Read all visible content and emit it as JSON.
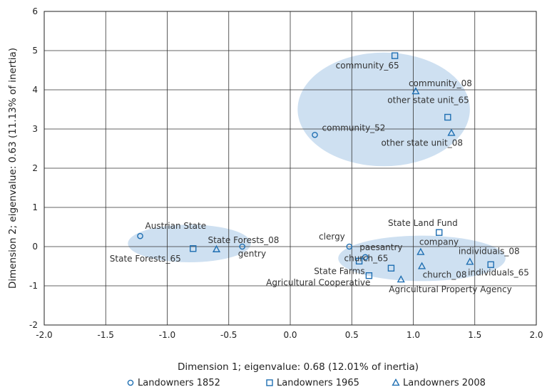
{
  "chart_data": {
    "type": "scatter",
    "xlabel": "Dimension 1;  eigenvalue: 0.68 (12.01% of inertia)",
    "ylabel": "Dimension  2; eigenvalue:  0.63 (11.13% of inertia)",
    "xlim": [
      -2.0,
      2.0
    ],
    "ylim": [
      -2,
      6
    ],
    "x_ticks": [
      "-2.0",
      "-1.5",
      "-1.0",
      "-0.5",
      "0.0",
      "0.5",
      "1.0",
      "1.5",
      "2.0"
    ],
    "y_ticks": [
      "-2",
      "-1",
      "0",
      "1",
      "2",
      "3",
      "4",
      "5",
      "6"
    ],
    "grid": true,
    "legend_position": "bottom",
    "colors": {
      "marker": "#1f6fb2",
      "ellipse": "#c6dbef"
    },
    "series": [
      {
        "name": "Landowners 1852",
        "marker": "circle",
        "points": [
          {
            "label": "community_52",
            "x": 0.2,
            "y": 2.85
          },
          {
            "label": "Austrian State",
            "x": -1.22,
            "y": 0.27
          },
          {
            "label": "gentry",
            "x": -0.39,
            "y": 0.0
          },
          {
            "label": "clergy",
            "x": 0.48,
            "y": 0.0
          },
          {
            "label": "paesantry",
            "x": 0.61,
            "y": -0.27
          }
        ]
      },
      {
        "name": "Landowners 1965",
        "marker": "square",
        "points": [
          {
            "label": "community_65",
            "x": 0.85,
            "y": 4.87
          },
          {
            "label": "other state unit_65",
            "x": 1.28,
            "y": 3.3
          },
          {
            "label": "State Forests_65",
            "x": -0.79,
            "y": -0.05
          },
          {
            "label": "State Land Fund",
            "x": 1.21,
            "y": 0.36
          },
          {
            "label": "State Farms",
            "x": 0.56,
            "y": -0.37
          },
          {
            "label": "church_65",
            "x": 0.82,
            "y": -0.55
          },
          {
            "label": "Agricultural Cooperative",
            "x": 0.64,
            "y": -0.74
          },
          {
            "label": "individuals_65",
            "x": 1.63,
            "y": -0.46
          }
        ]
      },
      {
        "name": "Landowners 2008",
        "marker": "triangle",
        "points": [
          {
            "label": "community_08",
            "x": 1.02,
            "y": 3.96
          },
          {
            "label": "other state unit_08",
            "x": 1.31,
            "y": 2.9
          },
          {
            "label": "State Forests_08",
            "x": -0.6,
            "y": -0.07
          },
          {
            "label": "company",
            "x": 1.06,
            "y": -0.14
          },
          {
            "label": "church_08",
            "x": 1.07,
            "y": -0.5
          },
          {
            "label": "individuals_08",
            "x": 1.46,
            "y": -0.39
          },
          {
            "label": "Agricultural Property Agency",
            "x": 0.9,
            "y": -0.84
          }
        ]
      }
    ]
  }
}
